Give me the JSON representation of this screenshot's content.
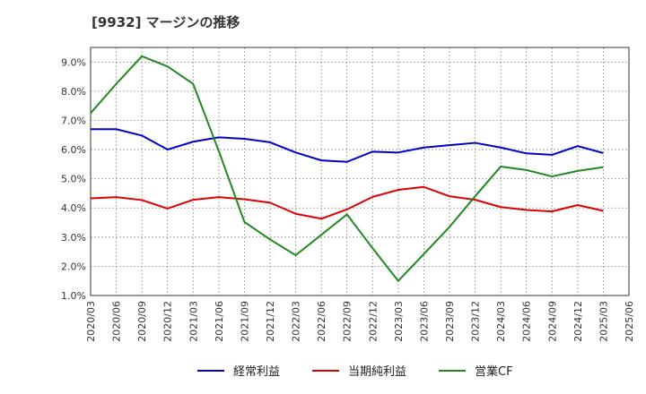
{
  "chart_data": {
    "type": "line",
    "title": "[9932]  マージンの推移",
    "x": [
      "2020/03",
      "2020/06",
      "2020/09",
      "2020/12",
      "2021/03",
      "2021/06",
      "2021/09",
      "2021/12",
      "2022/03",
      "2022/06",
      "2022/09",
      "2022/12",
      "2023/03",
      "2023/06",
      "2023/09",
      "2023/12",
      "2024/03",
      "2024/06",
      "2024/09",
      "2024/12",
      "2025/03"
    ],
    "x_ticks": [
      "2020/03",
      "2020/06",
      "2020/09",
      "2020/12",
      "2021/03",
      "2021/06",
      "2021/09",
      "2021/12",
      "2022/03",
      "2022/06",
      "2022/09",
      "2022/12",
      "2023/03",
      "2023/06",
      "2023/09",
      "2023/12",
      "2024/03",
      "2024/06",
      "2024/09",
      "2024/12",
      "2025/03",
      "2025/06"
    ],
    "y_ticks": [
      "1.0%",
      "2.0%",
      "3.0%",
      "4.0%",
      "5.0%",
      "6.0%",
      "7.0%",
      "8.0%",
      "9.0%"
    ],
    "ylim": [
      1.0,
      9.5
    ],
    "grid": true,
    "legend_position": "bottom",
    "series": [
      {
        "name": "経常利益",
        "color": "#0000cc",
        "values": [
          6.7,
          6.7,
          6.48,
          6.0,
          6.27,
          6.42,
          6.37,
          6.25,
          5.9,
          5.63,
          5.58,
          5.93,
          5.9,
          6.07,
          6.15,
          6.23,
          6.07,
          5.87,
          5.82,
          6.12,
          5.88
        ]
      },
      {
        "name": "当期純利益",
        "color": "#dd0000",
        "values": [
          4.33,
          4.37,
          4.27,
          3.98,
          4.28,
          4.37,
          4.3,
          4.18,
          3.8,
          3.63,
          3.95,
          4.38,
          4.62,
          4.72,
          4.4,
          4.28,
          4.03,
          3.93,
          3.88,
          4.1,
          3.9
        ]
      },
      {
        "name": "営業CF",
        "color": "#228822",
        "values": [
          7.25,
          8.25,
          9.2,
          8.85,
          8.25,
          5.95,
          3.52,
          2.92,
          2.38,
          3.08,
          3.78,
          2.62,
          1.5,
          2.42,
          3.35,
          4.4,
          5.42,
          5.3,
          5.08,
          5.27,
          5.4
        ]
      }
    ]
  }
}
